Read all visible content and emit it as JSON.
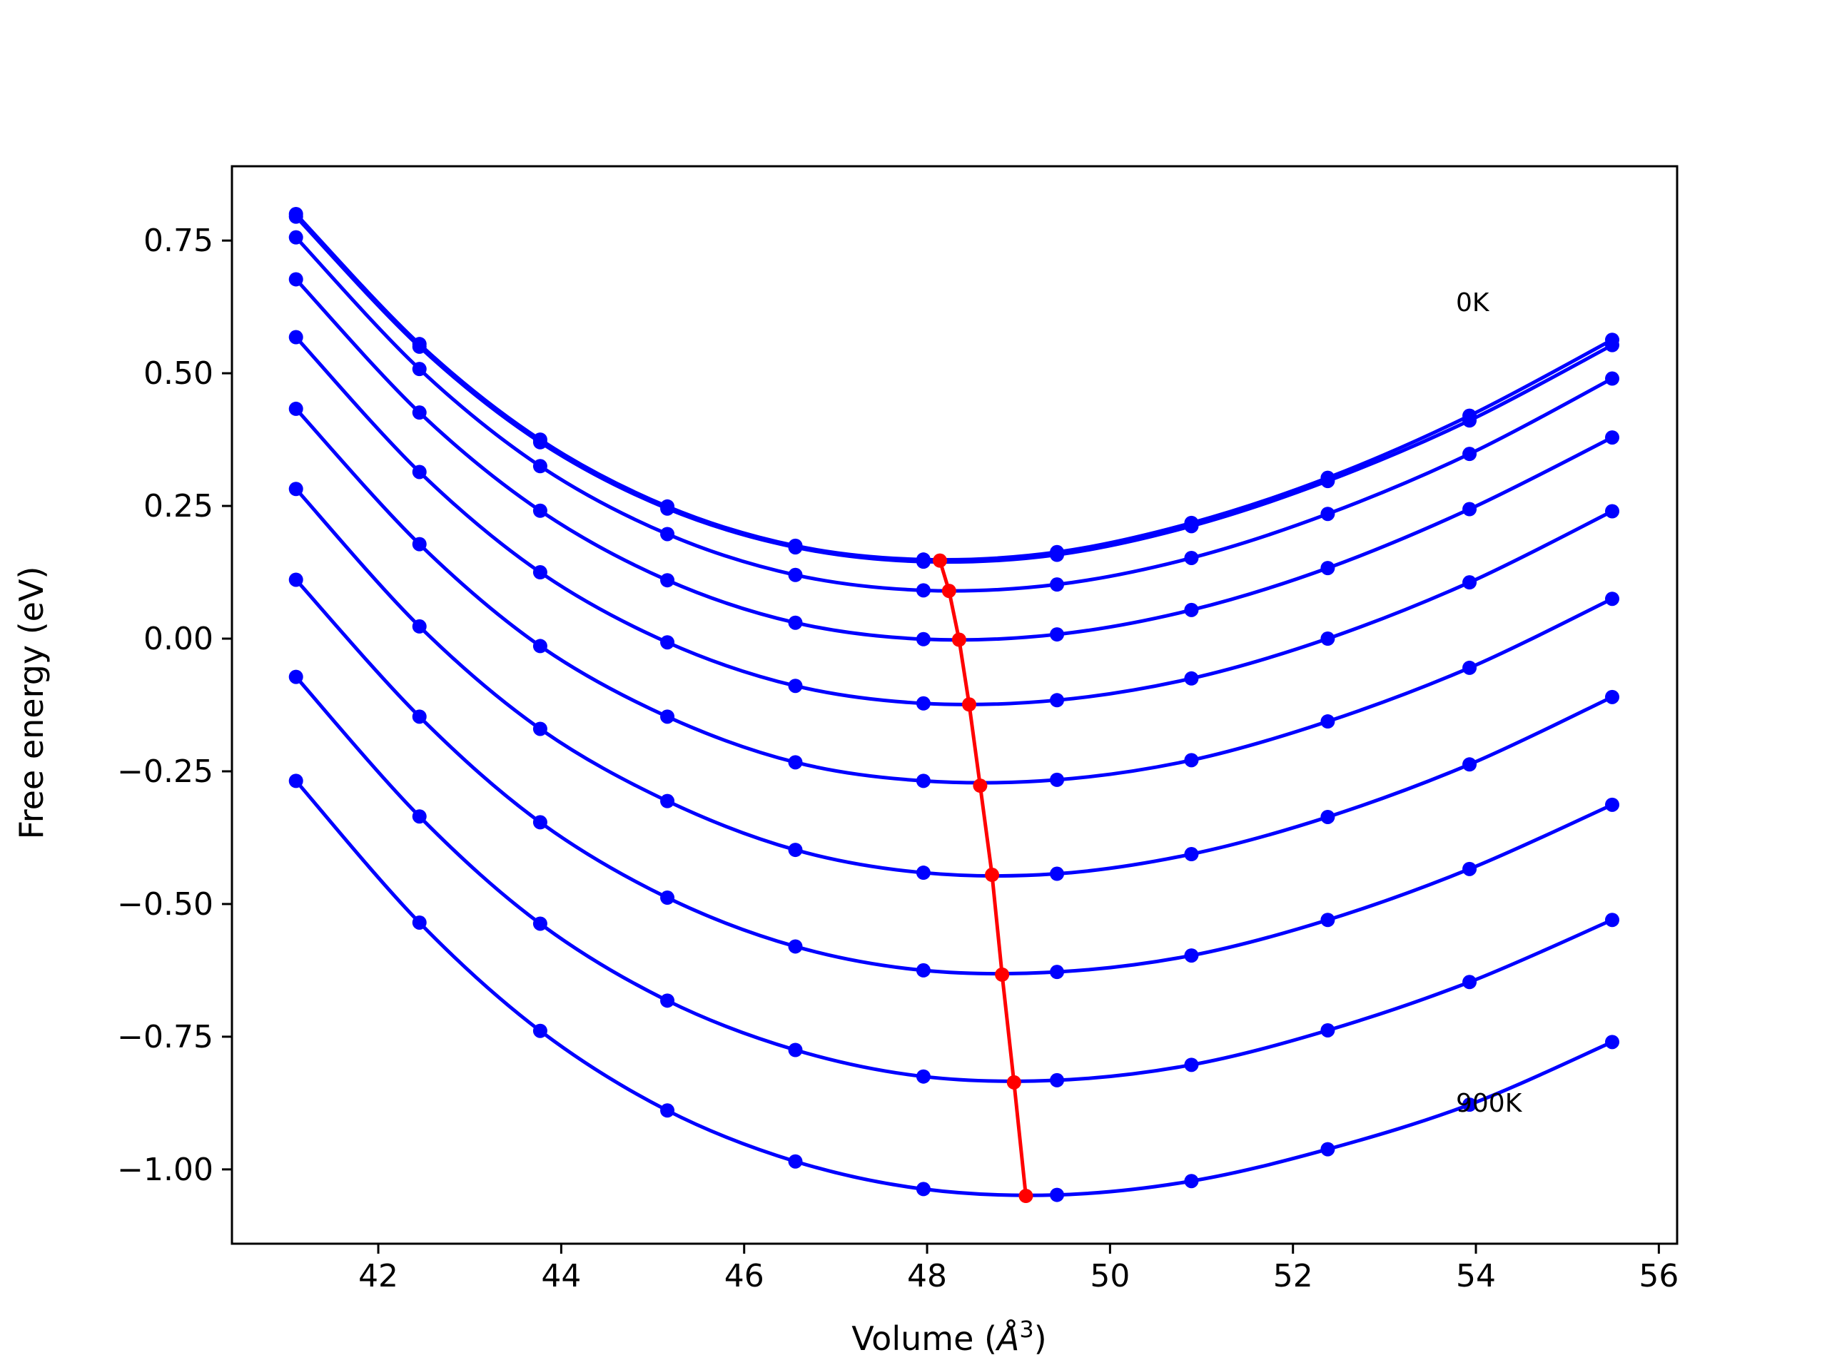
{
  "chart_data": {
    "type": "line",
    "title": "",
    "xlabel_main": "Volume (",
    "xlabel_unit_base": "Å",
    "xlabel_unit_exp": "3",
    "xlabel_close": ")",
    "ylabel": "Free energy (eV)",
    "xlim": [
      40.4,
      56.2
    ],
    "ylim": [
      -1.14,
      0.89
    ],
    "xticks": [
      42,
      44,
      46,
      48,
      50,
      52,
      54,
      56
    ],
    "xtick_labels": [
      "42",
      "44",
      "46",
      "48",
      "50",
      "52",
      "54",
      "56"
    ],
    "yticks": [
      0.75,
      0.5,
      0.25,
      0.0,
      -0.25,
      -0.5,
      -0.75,
      -1.0
    ],
    "ytick_labels": [
      "0.75",
      "0.50",
      "0.25",
      "0.00",
      "−0.25",
      "−0.50",
      "−0.75",
      "−1.00"
    ],
    "grid": false,
    "annotations": [
      "0K",
      "900K"
    ],
    "series_color": "#0000ff",
    "minimum_color": "#ff0000",
    "x": [
      41.1,
      42.45,
      43.77,
      45.16,
      46.56,
      47.96,
      49.42,
      50.89,
      52.38,
      53.93,
      55.49
    ],
    "series": [
      {
        "values": [
          0.8,
          0.555,
          0.375,
          0.249,
          0.175,
          0.149,
          0.163,
          0.218,
          0.303,
          0.42,
          0.563
        ]
      },
      {
        "values": [
          0.795,
          0.55,
          0.37,
          0.245,
          0.172,
          0.145,
          0.158,
          0.212,
          0.297,
          0.411,
          0.553
        ]
      },
      {
        "values": [
          0.756,
          0.508,
          0.325,
          0.197,
          0.12,
          0.091,
          0.102,
          0.152,
          0.235,
          0.348,
          0.49
        ]
      },
      {
        "values": [
          0.677,
          0.426,
          0.241,
          0.11,
          0.03,
          -0.001,
          0.008,
          0.054,
          0.133,
          0.244,
          0.379
        ]
      },
      {
        "values": [
          0.568,
          0.314,
          0.125,
          -0.007,
          -0.089,
          -0.122,
          -0.116,
          -0.075,
          0.0,
          0.106,
          0.24
        ]
      },
      {
        "values": [
          0.433,
          0.178,
          -0.014,
          -0.147,
          -0.233,
          -0.268,
          -0.266,
          -0.229,
          -0.156,
          -0.055,
          0.075
        ]
      },
      {
        "values": [
          0.282,
          0.023,
          -0.17,
          -0.306,
          -0.398,
          -0.441,
          -0.443,
          -0.406,
          -0.336,
          -0.237,
          -0.11
        ]
      },
      {
        "values": [
          0.111,
          -0.147,
          -0.346,
          -0.488,
          -0.58,
          -0.625,
          -0.628,
          -0.597,
          -0.53,
          -0.434,
          -0.313
        ]
      },
      {
        "values": [
          -0.072,
          -0.335,
          -0.537,
          -0.682,
          -0.775,
          -0.825,
          -0.832,
          -0.803,
          -0.738,
          -0.647,
          -0.53
        ]
      },
      {
        "values": [
          -0.268,
          -0.535,
          -0.739,
          -0.889,
          -0.985,
          -1.037,
          -1.048,
          -1.022,
          -0.962,
          -0.878,
          -0.76
        ]
      }
    ],
    "minima": {
      "x": [
        48.14,
        48.24,
        48.35,
        48.46,
        48.58,
        48.71,
        48.82,
        48.95,
        49.08
      ],
      "y": [
        0.147,
        0.09,
        -0.002,
        -0.124,
        -0.277,
        -0.445,
        -0.633,
        -0.836,
        -1.05
      ]
    }
  }
}
